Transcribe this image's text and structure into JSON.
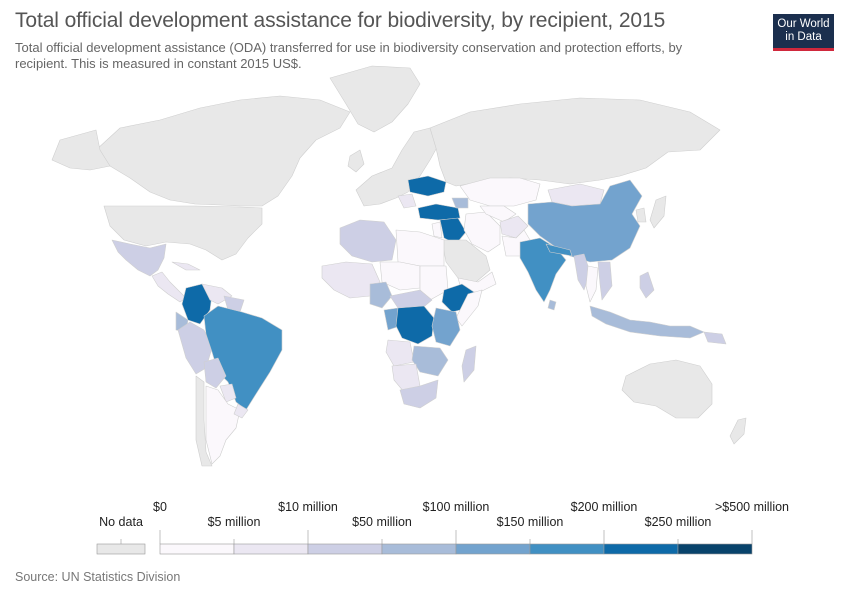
{
  "title": "Total official development assistance for biodiversity, by recipient, 2015",
  "subtitle": "Total official development assistance (ODA) transferred for use in biodiversity conservation and protection efforts, by recipient. This is measured in constant 2015 US$.",
  "logo": {
    "line1": "Our World",
    "line2": "in Data"
  },
  "source": "Source: UN Statistics Division",
  "colors": {
    "no_data": "#e8e8e8",
    "bins": [
      "#fbf8fc",
      "#ebe7f2",
      "#cdcfe5",
      "#a8bcd9",
      "#73a3ce",
      "#4190c3",
      "#0e6aa8",
      "#08436b"
    ]
  },
  "legend": {
    "no_data_label": "No data",
    "labels_top": [
      "$0",
      "$10 million",
      "$100 million",
      "$200 million",
      ">$500 million"
    ],
    "labels_bottom": [
      "$5 million",
      "$50 million",
      "$150 million",
      "$250 million"
    ]
  }
}
